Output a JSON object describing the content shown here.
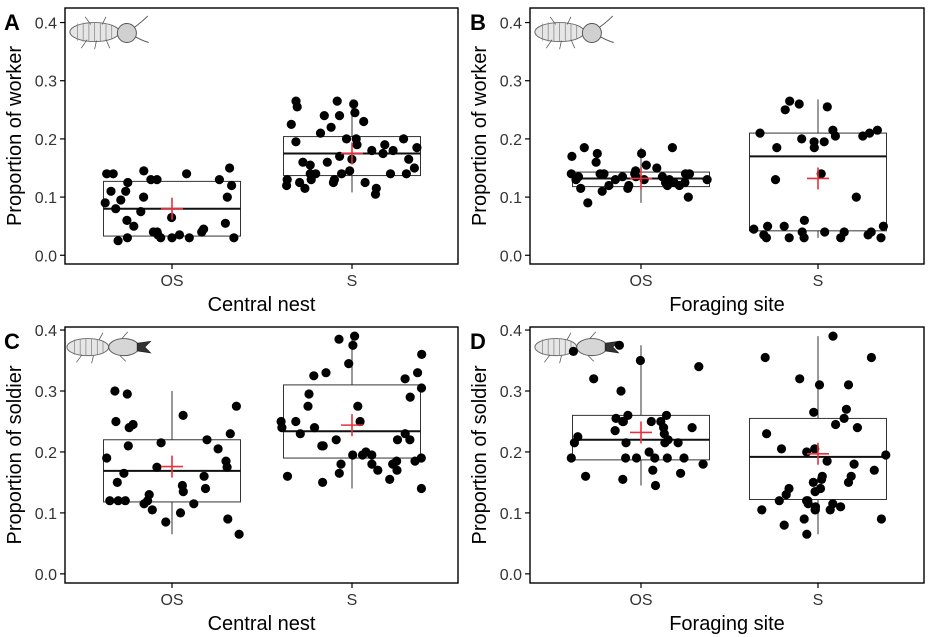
{
  "figure": {
    "mean_marker_color": "#e8303a",
    "point_color": "#000000",
    "axis_color": "#000000",
    "box_color": "#333333",
    "icon_worker": "termite-worker-icon",
    "icon_soldier": "termite-soldier-icon"
  },
  "chart_data": [
    {
      "type": "box",
      "panel_label": "A",
      "xlabel": "Central nest",
      "ylabel": "Proportion of worker",
      "ylim": [
        -0.015,
        0.425
      ],
      "yticks": [
        0.0,
        0.1,
        0.2,
        0.3,
        0.4
      ],
      "ytick_labels": [
        "0.0",
        "0.1",
        "0.2",
        "0.3",
        "0.4"
      ],
      "icon": "worker",
      "categories": [
        "OS",
        "S"
      ],
      "boxes": [
        {
          "category": "OS",
          "q1": 0.033,
          "median": 0.08,
          "q3": 0.127,
          "whisker_low": 0.033,
          "whisker_high": 0.127,
          "mean": 0.08,
          "points": [
            0.1,
            0.12,
            0.11,
            0.13,
            0.15,
            0.095,
            0.04,
            0.03,
            0.03,
            0.05,
            0.025,
            0.03,
            0.04,
            0.06,
            0.065,
            0.075,
            0.08,
            0.045,
            0.145,
            0.1,
            0.09,
            0.055,
            0.125,
            0.13,
            0.03,
            0.03,
            0.035,
            0.13,
            0.04,
            0.14,
            0.14,
            0.11,
            0.035,
            0.14
          ]
        },
        {
          "category": "S",
          "q1": 0.137,
          "median": 0.175,
          "q3": 0.204,
          "whisker_low": 0.108,
          "whisker_high": 0.268,
          "mean": 0.175,
          "points": [
            0.115,
            0.14,
            0.18,
            0.165,
            0.2,
            0.23,
            0.225,
            0.19,
            0.14,
            0.195,
            0.14,
            0.13,
            0.17,
            0.185,
            0.265,
            0.24,
            0.155,
            0.175,
            0.245,
            0.125,
            0.14,
            0.16,
            0.2,
            0.15,
            0.19,
            0.265,
            0.115,
            0.105,
            0.26,
            0.12,
            0.13,
            0.165,
            0.2,
            0.21,
            0.145,
            0.22,
            0.18,
            0.14,
            0.125,
            0.16,
            0.255,
            0.13,
            0.24,
            0.125
          ]
        }
      ]
    },
    {
      "type": "box",
      "panel_label": "B",
      "xlabel": "Foraging site",
      "ylabel": "Proportion of worker",
      "ylim": [
        -0.015,
        0.425
      ],
      "yticks": [
        0.0,
        0.1,
        0.2,
        0.3,
        0.4
      ],
      "ytick_labels": [
        "0.0",
        "0.1",
        "0.2",
        "0.3",
        "0.4"
      ],
      "icon": "worker",
      "categories": [
        "OS",
        "S"
      ],
      "boxes": [
        {
          "category": "OS",
          "q1": 0.118,
          "median": 0.132,
          "q3": 0.143,
          "whisker_low": 0.09,
          "whisker_high": 0.185,
          "mean": 0.132,
          "points": [
            0.09,
            0.1,
            0.125,
            0.135,
            0.14,
            0.185,
            0.12,
            0.11,
            0.13,
            0.125,
            0.14,
            0.12,
            0.16,
            0.15,
            0.175,
            0.185,
            0.14,
            0.12,
            0.13,
            0.13,
            0.115,
            0.155,
            0.145,
            0.17,
            0.135,
            0.12,
            0.175,
            0.14,
            0.115,
            0.13,
            0.135,
            0.13,
            0.14,
            0.125,
            0.14,
            0.135
          ]
        },
        {
          "category": "S",
          "q1": 0.042,
          "median": 0.17,
          "q3": 0.21,
          "whisker_low": 0.03,
          "whisker_high": 0.268,
          "mean": 0.132,
          "points": [
            0.06,
            0.04,
            0.265,
            0.255,
            0.21,
            0.195,
            0.185,
            0.05,
            0.05,
            0.04,
            0.03,
            0.14,
            0.13,
            0.2,
            0.21,
            0.035,
            0.03,
            0.25,
            0.215,
            0.04,
            0.195,
            0.205,
            0.03,
            0.035,
            0.05,
            0.215,
            0.205,
            0.1,
            0.185,
            0.03,
            0.03,
            0.26,
            0.04,
            0.045
          ]
        }
      ]
    },
    {
      "type": "box",
      "panel_label": "C",
      "xlabel": "Central nest",
      "ylabel": "Proportion of soldier",
      "ylim": [
        -0.015,
        0.405
      ],
      "yticks": [
        0.0,
        0.1,
        0.2,
        0.3,
        0.4
      ],
      "ytick_labels": [
        "0.0",
        "0.1",
        "0.2",
        "0.3",
        "0.4"
      ],
      "icon": "soldier",
      "categories": [
        "OS",
        "S"
      ],
      "boxes": [
        {
          "category": "OS",
          "q1": 0.118,
          "median": 0.169,
          "q3": 0.22,
          "whisker_low": 0.065,
          "whisker_high": 0.3,
          "mean": 0.176,
          "points": [
            0.105,
            0.22,
            0.175,
            0.16,
            0.145,
            0.12,
            0.12,
            0.275,
            0.215,
            0.15,
            0.115,
            0.09,
            0.065,
            0.19,
            0.175,
            0.165,
            0.135,
            0.205,
            0.3,
            0.13,
            0.12,
            0.24,
            0.14,
            0.21,
            0.185,
            0.295,
            0.085,
            0.1,
            0.25,
            0.12,
            0.115,
            0.23,
            0.245,
            0.26
          ]
        },
        {
          "category": "S",
          "q1": 0.19,
          "median": 0.234,
          "q3": 0.31,
          "whisker_low": 0.14,
          "whisker_high": 0.39,
          "mean": 0.244,
          "points": [
            0.18,
            0.2,
            0.33,
            0.325,
            0.295,
            0.195,
            0.23,
            0.19,
            0.16,
            0.14,
            0.22,
            0.25,
            0.305,
            0.185,
            0.18,
            0.15,
            0.17,
            0.22,
            0.33,
            0.385,
            0.39,
            0.345,
            0.165,
            0.21,
            0.275,
            0.25,
            0.195,
            0.32,
            0.22,
            0.155,
            0.185,
            0.24,
            0.21,
            0.17,
            0.375,
            0.25,
            0.29,
            0.23,
            0.36,
            0.195,
            0.275,
            0.24,
            0.18
          ]
        }
      ]
    },
    {
      "type": "box",
      "panel_label": "D",
      "xlabel": "Foraging site",
      "ylabel": "Proportion of soldier",
      "ylim": [
        -0.015,
        0.405
      ],
      "yticks": [
        0.0,
        0.1,
        0.2,
        0.3,
        0.4
      ],
      "ytick_labels": [
        "0.0",
        "0.1",
        "0.2",
        "0.3",
        "0.4"
      ],
      "icon": "soldier",
      "categories": [
        "OS",
        "S"
      ],
      "boxes": [
        {
          "category": "OS",
          "q1": 0.187,
          "median": 0.22,
          "q3": 0.26,
          "whisker_low": 0.145,
          "whisker_high": 0.375,
          "mean": 0.232,
          "points": [
            0.19,
            0.24,
            0.225,
            0.19,
            0.34,
            0.365,
            0.25,
            0.26,
            0.255,
            0.2,
            0.215,
            0.25,
            0.215,
            0.19,
            0.17,
            0.145,
            0.235,
            0.25,
            0.35,
            0.3,
            0.32,
            0.24,
            0.19,
            0.155,
            0.16,
            0.19,
            0.26,
            0.23,
            0.19,
            0.22,
            0.18,
            0.165,
            0.25,
            0.375,
            0.215,
            0.215
          ]
        },
        {
          "category": "S",
          "q1": 0.122,
          "median": 0.192,
          "q3": 0.255,
          "whisker_low": 0.065,
          "whisker_high": 0.39,
          "mean": 0.197,
          "points": [
            0.355,
            0.31,
            0.245,
            0.17,
            0.16,
            0.15,
            0.13,
            0.15,
            0.09,
            0.115,
            0.105,
            0.135,
            0.24,
            0.205,
            0.11,
            0.16,
            0.12,
            0.32,
            0.31,
            0.12,
            0.185,
            0.23,
            0.255,
            0.205,
            0.2,
            0.115,
            0.155,
            0.195,
            0.39,
            0.355,
            0.12,
            0.105,
            0.27,
            0.105,
            0.14,
            0.11,
            0.265,
            0.08,
            0.065,
            0.14,
            0.18,
            0.09,
            0.105
          ]
        }
      ]
    }
  ]
}
